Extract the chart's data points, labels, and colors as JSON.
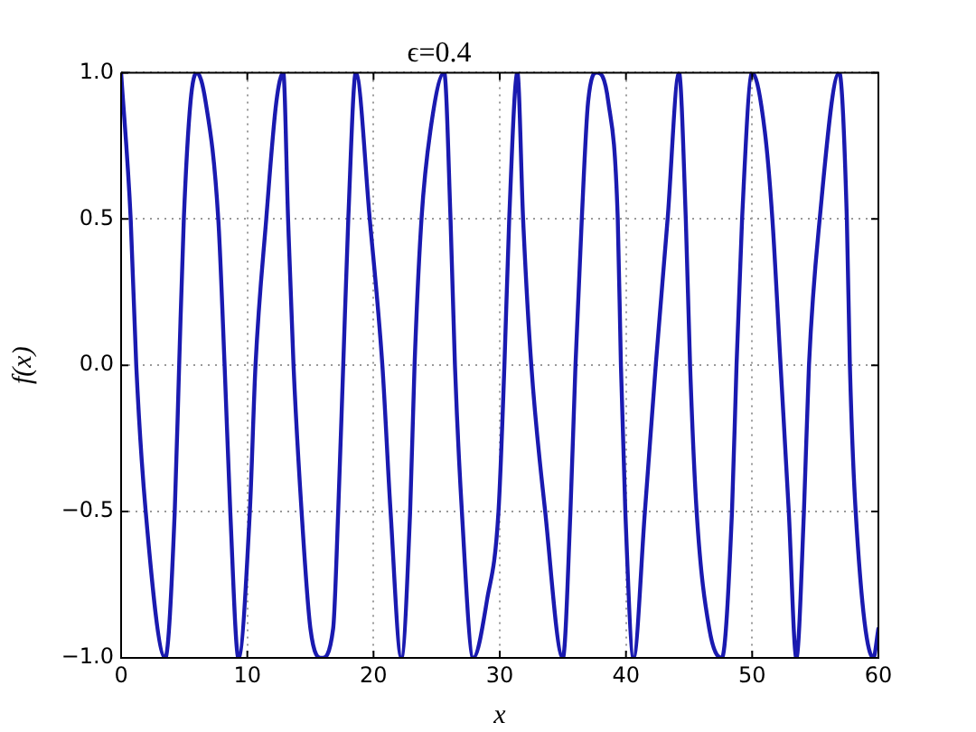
{
  "chart_data": {
    "type": "line",
    "title": "ϵ=0.4",
    "xlabel": "x",
    "ylabel": "f(x)",
    "x": [
      0,
      0.76,
      1.2,
      1.95,
      3.5,
      4.25,
      4.6,
      4.97,
      5.5,
      6.0,
      6.7,
      7.7,
      8.2,
      8.65,
      9.3,
      10.2,
      10.65,
      11.5,
      12.3,
      12.85,
      13.23,
      13.66,
      14.3,
      15.0,
      15.9,
      16.8,
      17.2,
      17.6,
      18.0,
      18.6,
      19.7,
      20.7,
      21.35,
      22.2,
      22.9,
      23.25,
      23.8,
      24.5,
      25.6,
      26.1,
      26.45,
      27.0,
      27.9,
      29.0,
      29.9,
      30.37,
      30.75,
      31.4,
      31.85,
      32.5,
      33.6,
      35.0,
      35.6,
      36.0,
      36.5,
      37.0,
      37.7,
      38.6,
      39.35,
      39.6,
      39.95,
      40.6,
      41.5,
      42.36,
      43.3,
      44.2,
      44.74,
      45.08,
      45.6,
      46.6,
      47.6,
      48.4,
      48.76,
      49.2,
      50.0,
      51.0,
      51.6,
      52.25,
      52.9,
      53.5,
      54.1,
      54.5,
      55.35,
      56.9,
      57.5,
      57.74,
      58.2,
      59.6,
      60
    ],
    "values": [
      1,
      0.5,
      0,
      -0.5,
      -1,
      -0.5,
      0,
      0.5,
      0.9,
      1,
      0.9,
      0.5,
      0,
      -0.5,
      -1,
      -0.5,
      0,
      0.5,
      0.9,
      1,
      0.5,
      0,
      -0.5,
      -0.9,
      -1,
      -0.9,
      -0.5,
      0,
      0.5,
      1,
      0.5,
      0,
      -0.5,
      -1,
      -0.5,
      0,
      0.5,
      0.8,
      1,
      0.5,
      0,
      -0.5,
      -1,
      -0.8,
      -0.5,
      0,
      0.5,
      1,
      0.5,
      0,
      -0.5,
      -1,
      -0.5,
      0,
      0.5,
      0.9,
      1,
      0.9,
      0.5,
      0,
      -0.5,
      -1,
      -0.5,
      0,
      0.5,
      1,
      0.5,
      0,
      -0.5,
      -0.9,
      -1,
      -0.5,
      0,
      0.5,
      1,
      0.8,
      0.5,
      0,
      -0.5,
      -1,
      -0.5,
      0,
      0.5,
      1,
      0.5,
      0,
      -0.5,
      -1,
      -0.9
    ],
    "color": "#1a1ab0",
    "xlim": [
      0,
      60
    ],
    "ylim": [
      -1,
      1
    ],
    "xticks": [
      0,
      10,
      20,
      30,
      40,
      50,
      60
    ],
    "yticks": [
      {
        "value": -1,
        "label": "−1.0"
      },
      {
        "value": -0.5,
        "label": "−0.5"
      },
      {
        "value": 0,
        "label": "0.0"
      },
      {
        "value": 0.5,
        "label": "0.5"
      },
      {
        "value": 1,
        "label": "1.0"
      }
    ],
    "grid": true
  }
}
